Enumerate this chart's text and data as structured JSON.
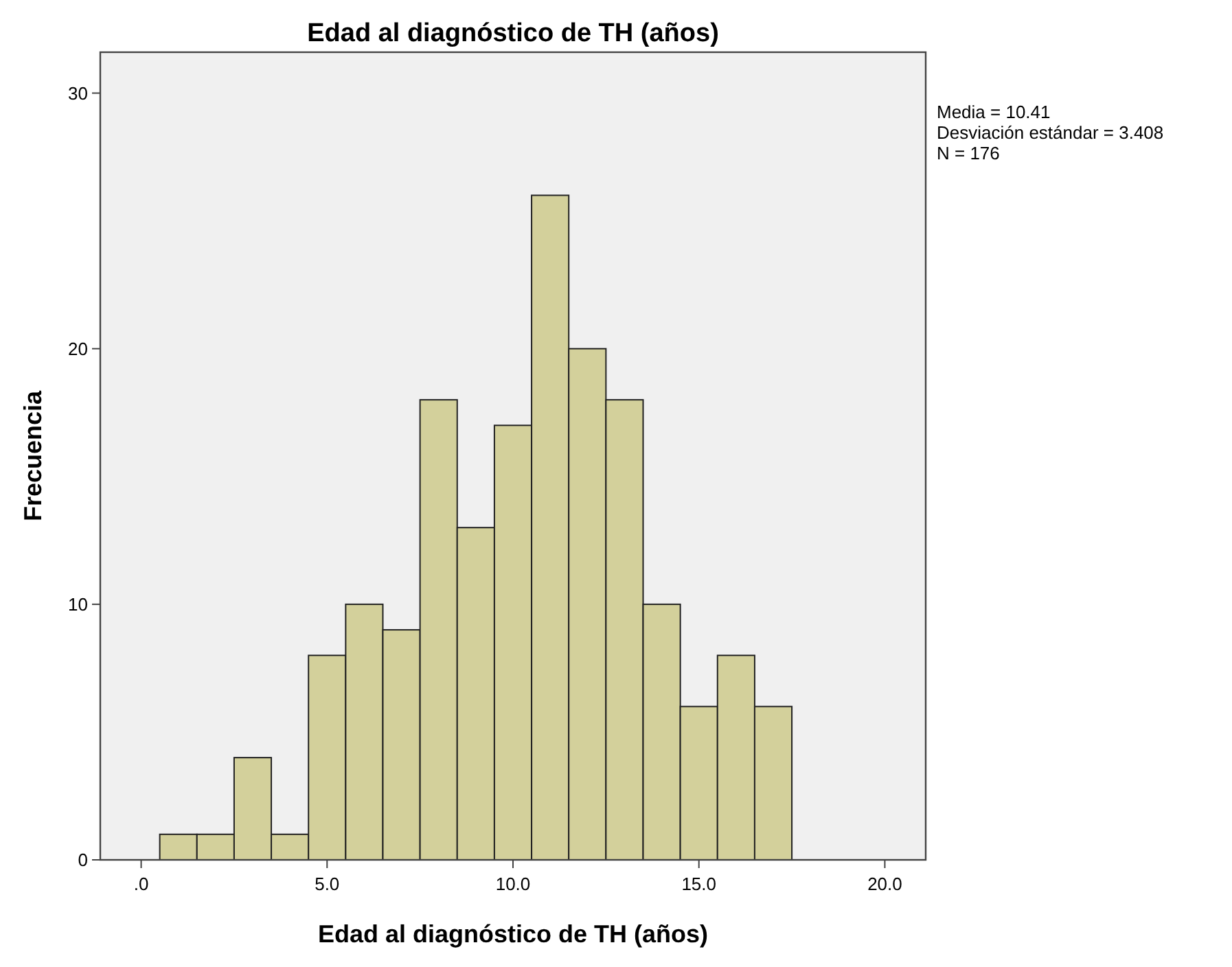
{
  "chart_data": {
    "type": "histogram",
    "title": "Edad al diagnóstico de TH (años)",
    "xlabel": "Edad al diagnóstico de TH (años)",
    "ylabel": "Frecuencia",
    "bins": [
      0.5,
      1.5,
      2.5,
      3.5,
      4.5,
      5.5,
      6.5,
      7.5,
      8.5,
      9.5,
      10.5,
      11.5,
      12.5,
      13.5,
      14.5,
      15.5,
      16.5,
      17.5
    ],
    "values": [
      1,
      1,
      4,
      1,
      8,
      10,
      9,
      18,
      13,
      17,
      26,
      20,
      18,
      10,
      6,
      8,
      6
    ],
    "color": "#d3d09b",
    "xlim": [
      -1.1,
      21.1
    ],
    "xticks": [
      {
        "value": 0,
        "label": ".0"
      },
      {
        "value": 5,
        "label": "5.0"
      },
      {
        "value": 10,
        "label": "10.0"
      },
      {
        "value": 15,
        "label": "15.0"
      },
      {
        "value": 20,
        "label": "20.0"
      }
    ],
    "ylim": [
      0,
      31.6
    ],
    "yticks": [
      0,
      10,
      20,
      30
    ],
    "grid": false,
    "annotations": [
      "Media = 10.41",
      "Desviación estándar = 3.408",
      "N = 176"
    ]
  }
}
